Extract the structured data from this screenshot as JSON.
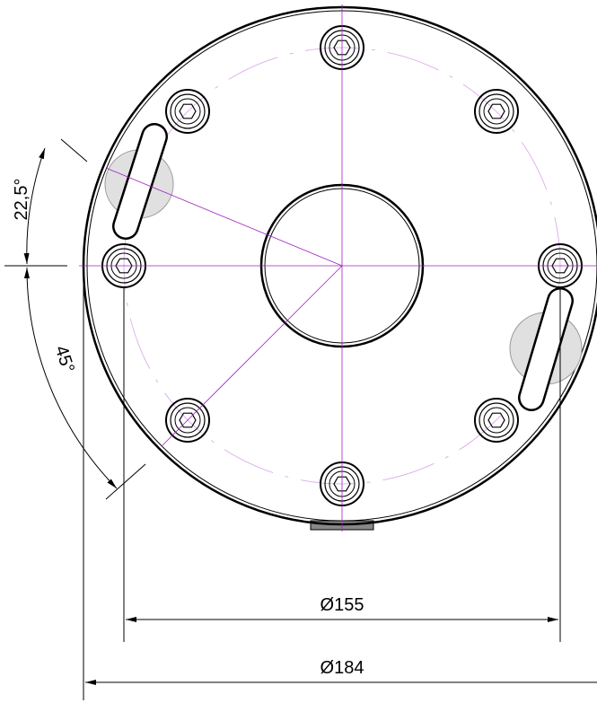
{
  "dimensions": {
    "angle_upper": "22,5°",
    "angle_lower": "45°",
    "bolt_circle_diameter": "Ø155",
    "outer_diameter": "Ø184"
  }
}
